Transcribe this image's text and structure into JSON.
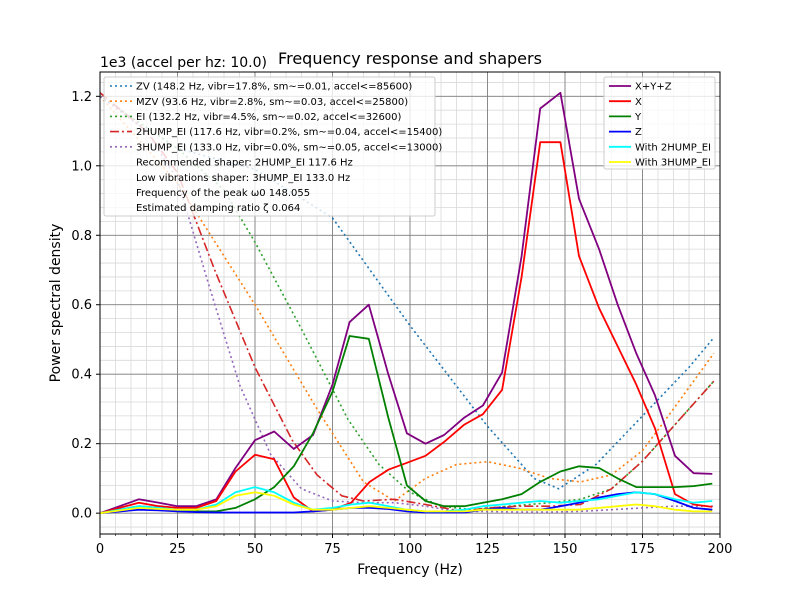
{
  "chart_data": {
    "type": "line",
    "title": "Frequency response and shapers",
    "xlabel": "Frequency (Hz)",
    "ylabel": "Power spectral density",
    "y_offset_label": "1e3 (accel per hz: 10.0)",
    "xlim": [
      0,
      200
    ],
    "ylim": [
      -0.06,
      1.27
    ],
    "xticks": [
      0,
      25,
      50,
      75,
      100,
      125,
      150,
      175,
      200
    ],
    "yticks": [
      0.0,
      0.2,
      0.4,
      0.6,
      0.8,
      1.0,
      1.2
    ],
    "x_minor_step": 5,
    "y_minor_step": 0.04,
    "grid": true,
    "psd_series": [
      {
        "name": "X+Y+Z",
        "color": "#800080",
        "style": "solid",
        "points": [
          [
            0,
            0.0
          ],
          [
            12.5,
            0.04
          ],
          [
            19,
            0.03
          ],
          [
            25,
            0.02
          ],
          [
            31,
            0.02
          ],
          [
            37.5,
            0.04
          ],
          [
            43.7,
            0.13
          ],
          [
            50,
            0.21
          ],
          [
            56.2,
            0.235
          ],
          [
            62.5,
            0.185
          ],
          [
            68.7,
            0.225
          ],
          [
            75,
            0.37
          ],
          [
            80.5,
            0.55
          ],
          [
            86.7,
            0.6
          ],
          [
            93,
            0.4
          ],
          [
            99,
            0.23
          ],
          [
            105,
            0.2
          ],
          [
            111,
            0.225
          ],
          [
            117.5,
            0.275
          ],
          [
            123.5,
            0.31
          ],
          [
            129.7,
            0.405
          ],
          [
            136,
            0.74
          ],
          [
            142,
            1.165
          ],
          [
            148.5,
            1.21
          ],
          [
            154.5,
            0.905
          ],
          [
            161,
            0.76
          ],
          [
            167,
            0.6
          ],
          [
            173,
            0.46
          ],
          [
            179,
            0.34
          ],
          [
            185.5,
            0.165
          ],
          [
            191.5,
            0.115
          ],
          [
            197.5,
            0.113
          ]
        ]
      },
      {
        "name": "X",
        "color": "#ff0000",
        "style": "solid",
        "points": [
          [
            0,
            0.0
          ],
          [
            12.5,
            0.03
          ],
          [
            19,
            0.02
          ],
          [
            25,
            0.015
          ],
          [
            31,
            0.015
          ],
          [
            37.5,
            0.035
          ],
          [
            43.7,
            0.12
          ],
          [
            50,
            0.168
          ],
          [
            56.2,
            0.155
          ],
          [
            62.5,
            0.045
          ],
          [
            68.7,
            0.005
          ],
          [
            75,
            0.01
          ],
          [
            81,
            0.03
          ],
          [
            87,
            0.09
          ],
          [
            93,
            0.125
          ],
          [
            99,
            0.145
          ],
          [
            105,
            0.165
          ],
          [
            111,
            0.205
          ],
          [
            117.5,
            0.255
          ],
          [
            123.5,
            0.285
          ],
          [
            129.7,
            0.355
          ],
          [
            136,
            0.68
          ],
          [
            142,
            1.068
          ],
          [
            148.5,
            1.068
          ],
          [
            154.5,
            0.74
          ],
          [
            161,
            0.59
          ],
          [
            167,
            0.48
          ],
          [
            173,
            0.37
          ],
          [
            179,
            0.245
          ],
          [
            185.5,
            0.055
          ],
          [
            191.5,
            0.025
          ],
          [
            197.5,
            0.018
          ]
        ]
      },
      {
        "name": "Y",
        "color": "#008000",
        "style": "solid",
        "points": [
          [
            0,
            0.0
          ],
          [
            12.5,
            0.02
          ],
          [
            19,
            0.015
          ],
          [
            25,
            0.005
          ],
          [
            31,
            0.005
          ],
          [
            37.5,
            0.005
          ],
          [
            43.7,
            0.015
          ],
          [
            50,
            0.04
          ],
          [
            56.2,
            0.075
          ],
          [
            62.5,
            0.135
          ],
          [
            68.7,
            0.23
          ],
          [
            75,
            0.35
          ],
          [
            80.5,
            0.51
          ],
          [
            86.7,
            0.502
          ],
          [
            93,
            0.275
          ],
          [
            99,
            0.08
          ],
          [
            105,
            0.035
          ],
          [
            111,
            0.02
          ],
          [
            117.5,
            0.02
          ],
          [
            123.5,
            0.03
          ],
          [
            129.7,
            0.04
          ],
          [
            136,
            0.055
          ],
          [
            142,
            0.09
          ],
          [
            148.5,
            0.12
          ],
          [
            154.5,
            0.135
          ],
          [
            161,
            0.13
          ],
          [
            167,
            0.1
          ],
          [
            173,
            0.075
          ],
          [
            179,
            0.075
          ],
          [
            185.5,
            0.075
          ],
          [
            191.5,
            0.078
          ],
          [
            197.5,
            0.085
          ]
        ]
      },
      {
        "name": "Z",
        "color": "#0000ff",
        "style": "solid",
        "points": [
          [
            0,
            0.0
          ],
          [
            12.5,
            0.01
          ],
          [
            19,
            0.008
          ],
          [
            25,
            0.005
          ],
          [
            31,
            0.003
          ],
          [
            37.5,
            0.002
          ],
          [
            43.7,
            0.002
          ],
          [
            50,
            0.002
          ],
          [
            56.2,
            0.002
          ],
          [
            62.5,
            0.002
          ],
          [
            68.7,
            0.005
          ],
          [
            75,
            0.01
          ],
          [
            81,
            0.015
          ],
          [
            87,
            0.015
          ],
          [
            93,
            0.012
          ],
          [
            99,
            0.005
          ],
          [
            105,
            0.002
          ],
          [
            111,
            0.002
          ],
          [
            117.5,
            0.002
          ],
          [
            123.5,
            0.01
          ],
          [
            129.7,
            0.015
          ],
          [
            136,
            0.01
          ],
          [
            142,
            0.01
          ],
          [
            148.5,
            0.02
          ],
          [
            154.5,
            0.03
          ],
          [
            161,
            0.045
          ],
          [
            167,
            0.055
          ],
          [
            173,
            0.06
          ],
          [
            179,
            0.055
          ],
          [
            185.5,
            0.035
          ],
          [
            191.5,
            0.015
          ],
          [
            197.5,
            0.01
          ]
        ]
      },
      {
        "name": "With 2HUMP_EI",
        "color": "#00ffff",
        "style": "solid",
        "points": [
          [
            0,
            0.0
          ],
          [
            12.5,
            0.02
          ],
          [
            19,
            0.015
          ],
          [
            25,
            0.01
          ],
          [
            31,
            0.01
          ],
          [
            37.5,
            0.025
          ],
          [
            43.7,
            0.06
          ],
          [
            50,
            0.075
          ],
          [
            56.2,
            0.06
          ],
          [
            62.5,
            0.03
          ],
          [
            68.7,
            0.01
          ],
          [
            75,
            0.015
          ],
          [
            81,
            0.025
          ],
          [
            87,
            0.03
          ],
          [
            93,
            0.02
          ],
          [
            99,
            0.01
          ],
          [
            105,
            0.005
          ],
          [
            111,
            0.005
          ],
          [
            117.5,
            0.01
          ],
          [
            123.5,
            0.02
          ],
          [
            129.7,
            0.025
          ],
          [
            136,
            0.03
          ],
          [
            142,
            0.035
          ],
          [
            148.5,
            0.03
          ],
          [
            154.5,
            0.035
          ],
          [
            161,
            0.04
          ],
          [
            167,
            0.05
          ],
          [
            173,
            0.06
          ],
          [
            179,
            0.055
          ],
          [
            185.5,
            0.04
          ],
          [
            191.5,
            0.03
          ],
          [
            197.5,
            0.035
          ]
        ]
      },
      {
        "name": "With 3HUMP_EI",
        "color": "#ffff00",
        "style": "solid",
        "points": [
          [
            0,
            0.0
          ],
          [
            12.5,
            0.015
          ],
          [
            19,
            0.012
          ],
          [
            25,
            0.01
          ],
          [
            31,
            0.01
          ],
          [
            37.5,
            0.02
          ],
          [
            43.7,
            0.05
          ],
          [
            50,
            0.06
          ],
          [
            56.2,
            0.05
          ],
          [
            62.5,
            0.025
          ],
          [
            68.7,
            0.01
          ],
          [
            75,
            0.01
          ],
          [
            81,
            0.015
          ],
          [
            87,
            0.02
          ],
          [
            93,
            0.015
          ],
          [
            99,
            0.01
          ],
          [
            105,
            0.005
          ],
          [
            111,
            0.005
          ],
          [
            117.5,
            0.005
          ],
          [
            123.5,
            0.01
          ],
          [
            129.7,
            0.01
          ],
          [
            136,
            0.01
          ],
          [
            142,
            0.01
          ],
          [
            148.5,
            0.01
          ],
          [
            154.5,
            0.01
          ],
          [
            161,
            0.015
          ],
          [
            167,
            0.02
          ],
          [
            173,
            0.025
          ],
          [
            179,
            0.02
          ],
          [
            185.5,
            0.01
          ],
          [
            191.5,
            0.005
          ],
          [
            197.5,
            0.005
          ]
        ]
      }
    ],
    "shaper_series": [
      {
        "name": "ZV (148.2 Hz, vibr=17.8%, sm~=0.01, accel<=85600)",
        "color": "#1f77b4",
        "style": "dotted",
        "points": [
          [
            0,
            1.2
          ],
          [
            25,
            1.05
          ],
          [
            50,
            0.99
          ],
          [
            75,
            0.85
          ],
          [
            100,
            0.54
          ],
          [
            125,
            0.25
          ],
          [
            140,
            0.1
          ],
          [
            148,
            0.07
          ],
          [
            160,
            0.14
          ],
          [
            175,
            0.28
          ],
          [
            190,
            0.42
          ],
          [
            198,
            0.505
          ]
        ]
      },
      {
        "name": "MZV (93.6 Hz, vibr=2.8%, sm~=0.03, accel<=25800)",
        "color": "#ff7f0e",
        "style": "dotted",
        "points": [
          [
            0,
            1.2
          ],
          [
            25,
            0.95
          ],
          [
            50,
            0.6
          ],
          [
            70,
            0.3
          ],
          [
            85,
            0.09
          ],
          [
            95,
            0.035
          ],
          [
            105,
            0.1
          ],
          [
            115,
            0.14
          ],
          [
            125,
            0.148
          ],
          [
            135,
            0.13
          ],
          [
            145,
            0.1
          ],
          [
            155,
            0.09
          ],
          [
            165,
            0.11
          ],
          [
            175,
            0.18
          ],
          [
            185,
            0.3
          ],
          [
            198,
            0.46
          ]
        ]
      },
      {
        "name": "EI (132.2 Hz, vibr=4.5%, sm~=0.02, accel<=32600)",
        "color": "#2ca02c",
        "style": "dotted",
        "points": [
          [
            0,
            1.2
          ],
          [
            25,
            1.05
          ],
          [
            40,
            0.93
          ],
          [
            50,
            0.78
          ],
          [
            65,
            0.53
          ],
          [
            80,
            0.27
          ],
          [
            90,
            0.14
          ],
          [
            100,
            0.06
          ],
          [
            110,
            0.02
          ],
          [
            120,
            0.01
          ],
          [
            132,
            0.02
          ],
          [
            145,
            0.03
          ],
          [
            155,
            0.04
          ],
          [
            165,
            0.07
          ],
          [
            175,
            0.15
          ],
          [
            185,
            0.25
          ],
          [
            198,
            0.38
          ]
        ]
      },
      {
        "name": "2HUMP_EI (117.6 Hz, vibr=0.2%, sm~=0.04, accel<=15400)",
        "color": "#d62728",
        "style": "dashdot",
        "points": [
          [
            0,
            1.21
          ],
          [
            15,
            1.1
          ],
          [
            25,
            0.98
          ],
          [
            37,
            0.7
          ],
          [
            50,
            0.42
          ],
          [
            62,
            0.21
          ],
          [
            70,
            0.11
          ],
          [
            78,
            0.05
          ],
          [
            85,
            0.035
          ],
          [
            95,
            0.04
          ],
          [
            105,
            0.025
          ],
          [
            117,
            0.005
          ],
          [
            125,
            0.015
          ],
          [
            135,
            0.02
          ],
          [
            145,
            0.02
          ],
          [
            155,
            0.025
          ],
          [
            165,
            0.07
          ],
          [
            175,
            0.15
          ],
          [
            185,
            0.25
          ],
          [
            198,
            0.38
          ]
        ]
      },
      {
        "name": "3HUMP_EI (133.0 Hz, vibr=0.0%, sm~=0.05, accel<=13000)",
        "color": "#9467bd",
        "style": "dotted",
        "points": [
          [
            0,
            1.2
          ],
          [
            15,
            1.1
          ],
          [
            25,
            0.96
          ],
          [
            35,
            0.66
          ],
          [
            45,
            0.37
          ],
          [
            55,
            0.17
          ],
          [
            65,
            0.07
          ],
          [
            75,
            0.035
          ],
          [
            85,
            0.03
          ],
          [
            95,
            0.03
          ],
          [
            105,
            0.02
          ],
          [
            115,
            0.005
          ],
          [
            125,
            0.005
          ],
          [
            135,
            0.003
          ],
          [
            145,
            0.003
          ],
          [
            155,
            0.005
          ],
          [
            165,
            0.01
          ],
          [
            175,
            0.015
          ],
          [
            185,
            0.02
          ],
          [
            198,
            0.02
          ]
        ]
      }
    ],
    "shaper_notes": [
      "Recommended shaper: 2HUMP_EI 117.6 Hz",
      "Low vibrations shaper: 3HUMP_EI 133.0 Hz",
      "Frequency of the peak ω0 148.055",
      "Estimated damping ratio ζ 0.064"
    ],
    "left_legend_placement": "upper-left",
    "right_legend_placement": "upper-right"
  }
}
